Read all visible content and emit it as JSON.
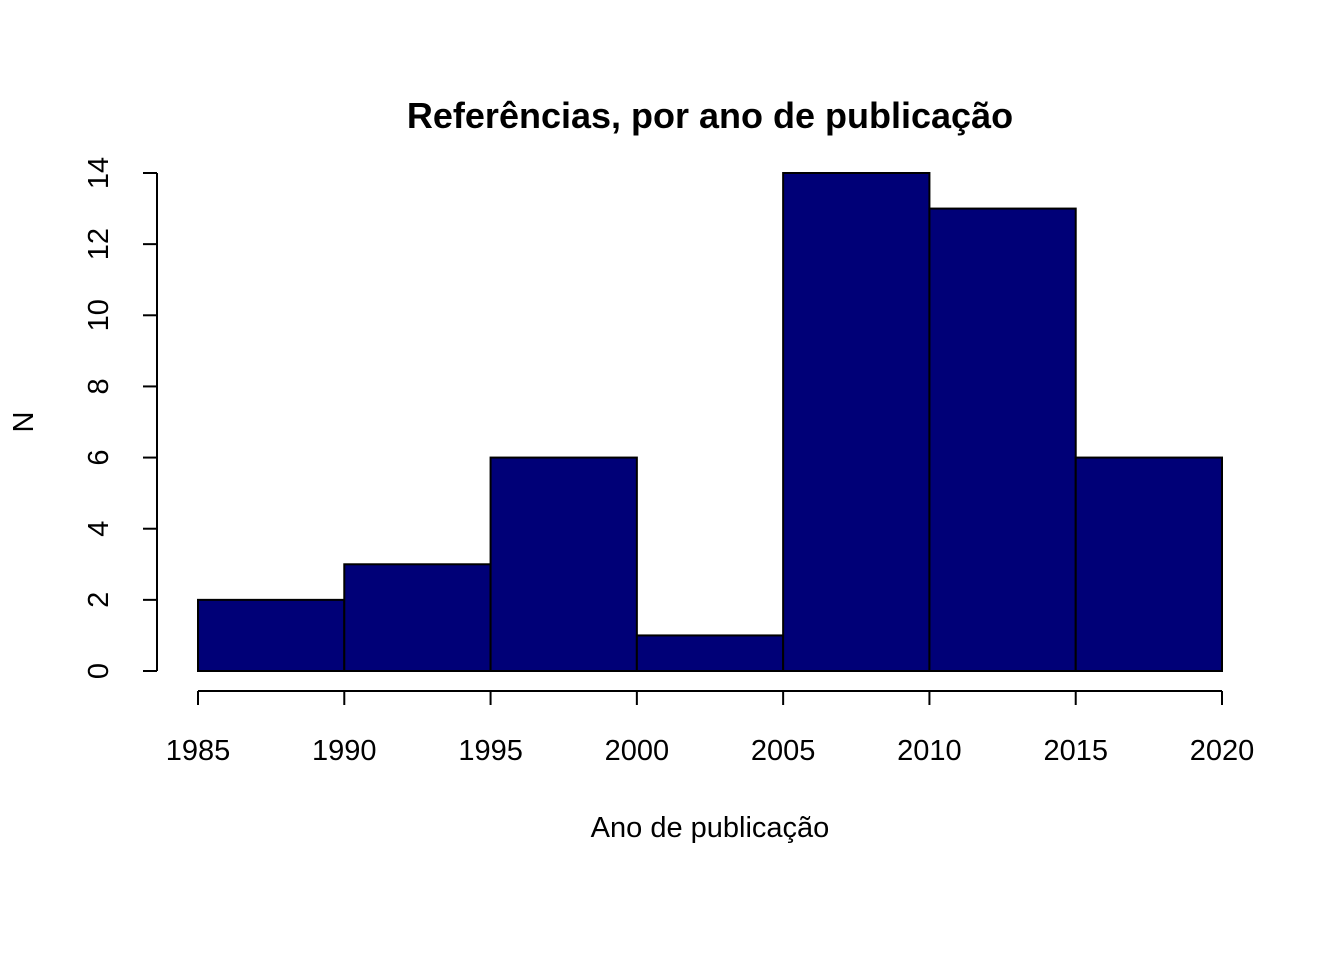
{
  "chart_data": {
    "type": "bar",
    "title": "Referências, por ano de publicação",
    "xlabel": "Ano de publicação",
    "ylabel": "N",
    "bins": [
      {
        "start": 1985,
        "end": 1990,
        "count": 2
      },
      {
        "start": 1990,
        "end": 1995,
        "count": 3
      },
      {
        "start": 1995,
        "end": 2000,
        "count": 6
      },
      {
        "start": 2000,
        "end": 2005,
        "count": 1
      },
      {
        "start": 2005,
        "end": 2010,
        "count": 14
      },
      {
        "start": 2010,
        "end": 2015,
        "count": 13
      },
      {
        "start": 2015,
        "end": 2020,
        "count": 6
      }
    ],
    "x_ticks": [
      "1985",
      "1990",
      "1995",
      "2000",
      "2005",
      "2010",
      "2015",
      "2020"
    ],
    "y_ticks": [
      "0",
      "2",
      "4",
      "6",
      "8",
      "10",
      "12",
      "14"
    ],
    "xlim": [
      1985,
      2020
    ],
    "ylim": [
      0,
      14
    ],
    "bar_color": "#000077",
    "grid": false,
    "legend": "none"
  }
}
